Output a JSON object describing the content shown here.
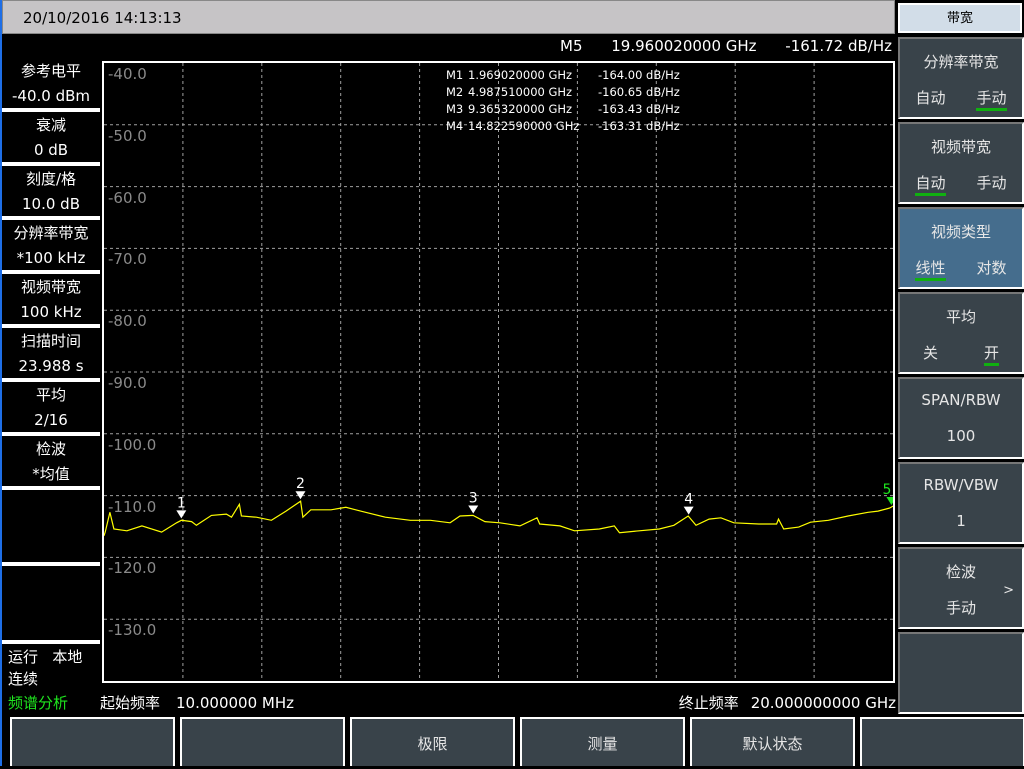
{
  "header": {
    "datetime": "20/10/2016  14:13:13"
  },
  "active_marker": {
    "name": "M5",
    "freq": "19.960020000 GHz",
    "value": "-161.72 dB/Hz"
  },
  "markers": [
    {
      "name": "M1",
      "label": "1",
      "freq": "1.969020000 GHz",
      "freq_ghz": 1.96902,
      "value": "-164.00 dB/Hz"
    },
    {
      "name": "M2",
      "label": "2",
      "freq": "4.987510000 GHz",
      "freq_ghz": 4.98751,
      "value": "-160.65 dB/Hz"
    },
    {
      "name": "M3",
      "label": "3",
      "freq": "9.365320000 GHz",
      "freq_ghz": 9.36532,
      "value": "-163.43 dB/Hz"
    },
    {
      "name": "M4",
      "label": "4",
      "freq": "14.822590000 GHz",
      "freq_ghz": 14.82259,
      "value": "-163.31 dB/Hz"
    },
    {
      "name": "M5",
      "label": "5",
      "freq_ghz": 19.96002,
      "active": true
    }
  ],
  "left_panel": [
    {
      "label": "参考电平",
      "value": "-40.0 dBm"
    },
    {
      "label": "衰减",
      "value": "0 dB"
    },
    {
      "label": "刻度/格",
      "value": "10.0 dB"
    },
    {
      "label": "分辨率带宽",
      "value": "*100 kHz"
    },
    {
      "label": "视频带宽",
      "value": "100 kHz"
    },
    {
      "label": "扫描时间",
      "value": "23.988 s"
    },
    {
      "label": "平均",
      "value": "2/16"
    },
    {
      "label": "检波",
      "value": "*均值"
    }
  ],
  "status": {
    "line1a": "运行",
    "line1b": "本地",
    "line2": "连续",
    "mode": "频谱分析"
  },
  "start_freq": {
    "label": "起始频率",
    "value": "10.000000 MHz"
  },
  "stop_freq": {
    "label": "终止频率",
    "value": "20.000000000 GHz"
  },
  "right_panel": {
    "title": "带宽",
    "buttons": [
      {
        "title": "分辨率带宽",
        "options": [
          "自动",
          "手动"
        ],
        "selected": 1
      },
      {
        "title": "视频带宽",
        "options": [
          "自动",
          "手动"
        ],
        "selected": 0
      },
      {
        "title": "视频类型",
        "options": [
          "线性",
          "对数"
        ],
        "selected": 0,
        "highlighted": true
      },
      {
        "title": "平均",
        "options": [
          "关",
          "开"
        ],
        "selected": 1
      },
      {
        "title": "SPAN/RBW",
        "value": "100"
      },
      {
        "title": "RBW/VBW",
        "value": "1"
      },
      {
        "title": "检波",
        "value": "手动",
        "arrow": ">"
      },
      {
        "title": ""
      }
    ]
  },
  "softkeys": [
    "",
    "",
    "极限",
    "测量",
    "默认状态",
    ""
  ],
  "colors": {
    "trace": "#ffff00",
    "active_marker": "#1ee61e",
    "grid": "#a0a0a0",
    "button_bg": "#39434a",
    "button_highlight": "#456d8d"
  },
  "chart_data": {
    "type": "line",
    "xlim_ghz": [
      0.01,
      20.0
    ],
    "ylim": [
      -140,
      -40
    ],
    "y_ticks": [
      "-40.0",
      "-50.0",
      "-60.0",
      "-70.0",
      "-80.0",
      "-90.0",
      "-100.0",
      "-110.0",
      "-120.0",
      "-130.0"
    ],
    "grid": true,
    "x_divisions": 10,
    "trace": {
      "x": [
        0.01,
        0.04,
        0.16,
        0.26,
        0.59,
        0.97,
        1.47,
        1.85,
        1.97,
        2.23,
        2.35,
        2.73,
        3.11,
        3.24,
        3.44,
        3.49,
        3.87,
        4.25,
        4.62,
        4.99,
        5.05,
        5.25,
        5.76,
        6.14,
        6.51,
        7.14,
        7.77,
        8.28,
        8.78,
        9.03,
        9.36,
        9.66,
        10.04,
        10.55,
        10.98,
        11.05,
        11.56,
        11.93,
        12.56,
        12.94,
        13.07,
        13.57,
        14.08,
        14.45,
        14.81,
        15.01,
        15.34,
        15.64,
        15.97,
        16.6,
        17.05,
        17.1,
        17.23,
        17.61,
        17.91,
        18.36,
        18.86,
        19.37,
        19.62,
        19.92,
        20.0
      ],
      "y": [
        -116.5,
        -115.9,
        -112.7,
        -115.4,
        -115.7,
        -114.9,
        -115.9,
        -114.4,
        -114.0,
        -114.2,
        -114.8,
        -113.2,
        -113.0,
        -113.5,
        -111.4,
        -113.3,
        -113.5,
        -114.0,
        -112.5,
        -110.9,
        -113.5,
        -112.3,
        -112.3,
        -111.9,
        -112.5,
        -113.5,
        -114.0,
        -114.0,
        -114.4,
        -113.3,
        -113.2,
        -114.2,
        -114.4,
        -114.9,
        -113.6,
        -114.6,
        -114.9,
        -115.7,
        -115.4,
        -114.9,
        -116.0,
        -115.7,
        -115.4,
        -114.8,
        -113.3,
        -114.8,
        -113.8,
        -113.6,
        -114.4,
        -114.6,
        -114.6,
        -113.8,
        -115.4,
        -115.1,
        -114.3,
        -114.0,
        -113.3,
        -112.7,
        -112.5,
        -112.0,
        -111.7
      ]
    }
  }
}
